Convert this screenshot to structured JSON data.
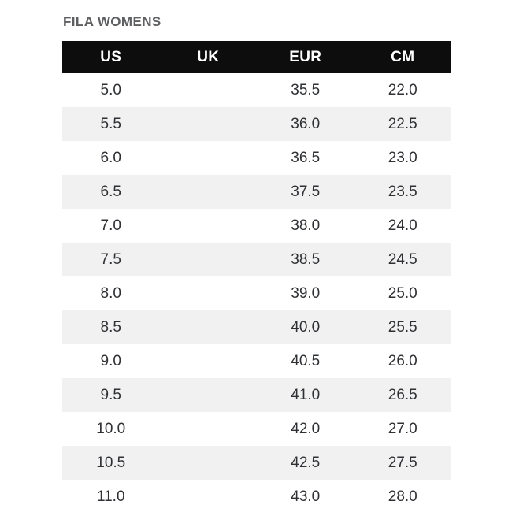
{
  "chart_data": {
    "type": "table",
    "title": "FILA WOMENS",
    "columns": [
      "US",
      "UK",
      "EUR",
      "CM"
    ],
    "rows": [
      [
        "5.0",
        "",
        "35.5",
        "22.0"
      ],
      [
        "5.5",
        "",
        "36.0",
        "22.5"
      ],
      [
        "6.0",
        "",
        "36.5",
        "23.0"
      ],
      [
        "6.5",
        "",
        "37.5",
        "23.5"
      ],
      [
        "7.0",
        "",
        "38.0",
        "24.0"
      ],
      [
        "7.5",
        "",
        "38.5",
        "24.5"
      ],
      [
        "8.0",
        "",
        "39.0",
        "25.0"
      ],
      [
        "8.5",
        "",
        "40.0",
        "25.5"
      ],
      [
        "9.0",
        "",
        "40.5",
        "26.0"
      ],
      [
        "9.5",
        "",
        "41.0",
        "26.5"
      ],
      [
        "10.0",
        "",
        "42.0",
        "27.0"
      ],
      [
        "10.5",
        "",
        "42.5",
        "27.5"
      ],
      [
        "11.0",
        "",
        "43.0",
        "28.0"
      ]
    ],
    "layout_hints": {
      "zebra_striping": true,
      "first_data_row_background": "white",
      "uk_column_empty": true
    }
  },
  "colors": {
    "page_bg": "#ffffff",
    "header_bg": "#0d0d0d",
    "header_text": "#ffffff",
    "stripe_bg": "#f1f1f1",
    "row_bg": "#ffffff",
    "cell_text": "#2e3034",
    "title_text": "#5e5f61"
  }
}
